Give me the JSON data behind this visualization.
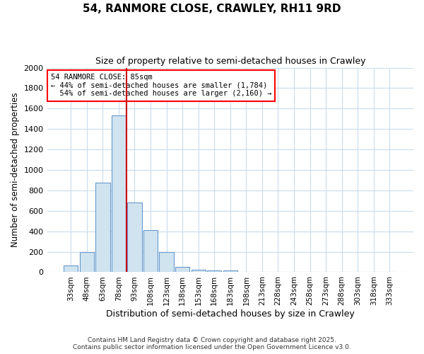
{
  "title": "54, RANMORE CLOSE, CRAWLEY, RH11 9RD",
  "subtitle": "Size of property relative to semi-detached houses in Crawley",
  "xlabel": "Distribution of semi-detached houses by size in Crawley",
  "ylabel": "Number of semi-detached properties",
  "bar_color": "#d0e4f0",
  "bar_edge_color": "#6699cc",
  "bin_labels": [
    "33sqm",
    "48sqm",
    "63sqm",
    "78sqm",
    "93sqm",
    "108sqm",
    "123sqm",
    "138sqm",
    "153sqm",
    "168sqm",
    "183sqm",
    "198sqm",
    "213sqm",
    "228sqm",
    "243sqm",
    "258sqm",
    "273sqm",
    "288sqm",
    "303sqm",
    "318sqm",
    "333sqm"
  ],
  "bin_values": [
    65,
    195,
    875,
    1530,
    685,
    415,
    195,
    55,
    25,
    20,
    20,
    0,
    0,
    0,
    0,
    0,
    0,
    0,
    0,
    0,
    0
  ],
  "ylim": [
    0,
    2000
  ],
  "yticks": [
    0,
    200,
    400,
    600,
    800,
    1000,
    1200,
    1400,
    1600,
    1800,
    2000
  ],
  "property_label": "54 RANMORE CLOSE: 85sqm",
  "pct_smaller": 44,
  "pct_larger": 54,
  "n_smaller": 1784,
  "n_larger": 2160,
  "vline_x": 3.5,
  "footer_line1": "Contains HM Land Registry data © Crown copyright and database right 2025.",
  "footer_line2": "Contains public sector information licensed under the Open Government Licence v3.0.",
  "background_color": "#ffffff",
  "plot_bg_color": "#ffffff",
  "grid_color": "#c8dced"
}
